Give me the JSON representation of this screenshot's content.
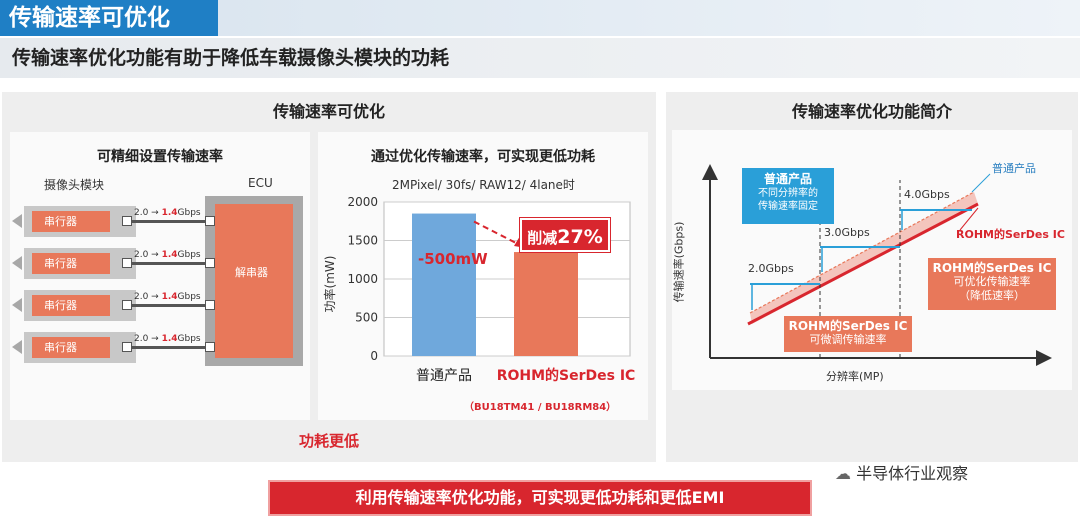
{
  "header": {
    "title": "传输速率可优化",
    "subtitle": "传输速率优化功能有助于降低车载摄像头模块的功耗"
  },
  "left_panel": {
    "title": "传输速率可优化",
    "bottom_label": "功耗更低"
  },
  "card_config": {
    "title": "可精细设置传输速率",
    "camera_label": "摄像头模块",
    "ecu_label": "ECU",
    "serializer_label": "串行器",
    "deserializer_label": "解串器",
    "rate_prefix": "2.0 → ",
    "rate_value": "1.4",
    "rate_unit": "Gbps",
    "rows": [
      1,
      2,
      3,
      4
    ]
  },
  "card_chart": {
    "title": "通过优化传输速率，可实现更低功耗",
    "condition": "2MPixel/ 30fs/ RAW12/ 4lane时",
    "reduction_label": "-500mW",
    "cut_prefix": "削减",
    "cut_value": "27%",
    "product_note": "（BU18TM41 / BU18RM84）"
  },
  "chart_data": {
    "type": "bar",
    "categories": [
      "普通产品",
      "ROHM的SerDes IC"
    ],
    "values": [
      1850,
      1350
    ],
    "ylabel": "功率(mW)",
    "ylim": [
      0,
      2000
    ],
    "yticks": [
      0,
      500,
      1000,
      1500,
      2000
    ],
    "colors": [
      "#6fa8dc",
      "#e8785a"
    ]
  },
  "right_panel": {
    "title": "传输速率优化功能简介",
    "legend_normal": "普通产品",
    "legend_rohm": "ROHM的SerDes IC",
    "ylabel": "传输速率(Gbps)",
    "xlabel": "分辨率(MP)",
    "rates": [
      "2.0Gbps",
      "3.0Gbps",
      "4.0Gbps"
    ],
    "callout_normal_title": "普通产品",
    "callout_normal_l1": "不同分辨率的",
    "callout_normal_l2": "传输速率固定",
    "callout_rohm1_title": "ROHM的SerDes IC",
    "callout_rohm1_l1": "可微调传输速率",
    "callout_rohm2_title": "ROHM的SerDes IC",
    "callout_rohm2_l1": "可优化传输速率",
    "callout_rohm2_l2": "（降低速率）"
  },
  "banner": {
    "text": "利用传输速率优化功能，可实现更低功耗和更低EMI"
  },
  "watermark": {
    "text": "半导体行业观察"
  }
}
